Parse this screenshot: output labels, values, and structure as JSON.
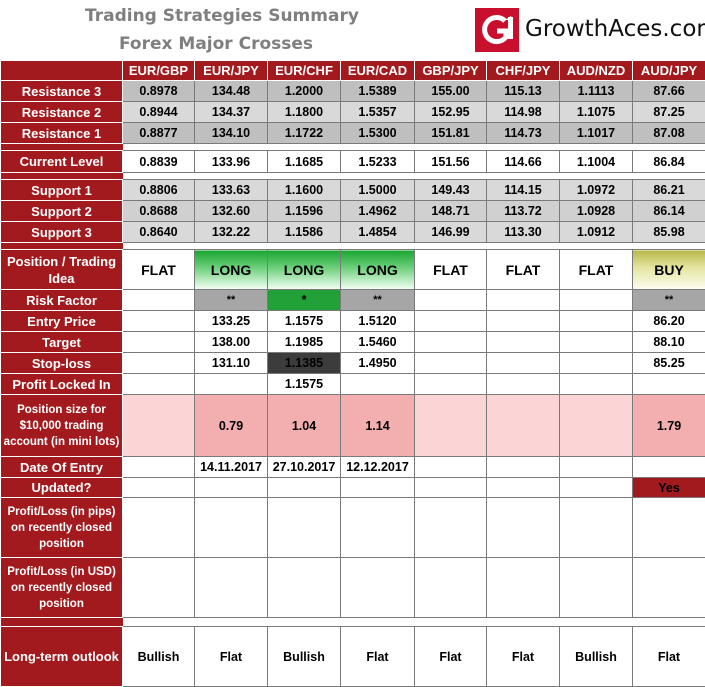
{
  "header": {
    "title": "Trading Strategies Summary",
    "subtitle": "Forex Major Crosses",
    "brand": "GrowthAces.com",
    "brand_colors": {
      "red": "#c8102e",
      "dark": "#111111"
    }
  },
  "pairs": [
    "EUR/GBP",
    "EUR/JPY",
    "EUR/CHF",
    "EUR/CAD",
    "GBP/JPY",
    "CHF/JPY",
    "AUD/NZD",
    "AUD/JPY"
  ],
  "labels": {
    "r3": "Resistance 3",
    "r2": "Resistance 2",
    "r1": "Resistance 1",
    "current": "Current Level",
    "s1": "Support 1",
    "s2": "Support 2",
    "s3": "Support 3",
    "position": "Position / Trading Idea",
    "risk": "Risk Factor",
    "entry": "Entry Price",
    "target": "Target",
    "stop": "Stop-loss",
    "locked": "Profit Locked In",
    "size": "Position size for $10,000 trading account (in mini lots)",
    "date": "Date Of Entry",
    "updated": "Updated?",
    "pl_pips": "Profit/Loss (in pips) on recently closed position",
    "pl_usd": "Profit/Loss (in USD) on recently closed position",
    "outlook": "Long-term outlook"
  },
  "rows": {
    "r3": [
      "0.8978",
      "134.48",
      "1.2000",
      "1.5389",
      "155.00",
      "115.13",
      "1.1113",
      "87.66"
    ],
    "r2": [
      "0.8944",
      "134.37",
      "1.1800",
      "1.5357",
      "152.95",
      "114.98",
      "1.1075",
      "87.25"
    ],
    "r1": [
      "0.8877",
      "134.10",
      "1.1722",
      "1.5300",
      "151.81",
      "114.73",
      "1.1017",
      "87.08"
    ],
    "current": [
      "0.8839",
      "133.96",
      "1.1685",
      "1.5233",
      "151.56",
      "114.66",
      "1.1004",
      "86.84"
    ],
    "s1": [
      "0.8806",
      "133.63",
      "1.1600",
      "1.5000",
      "149.43",
      "114.15",
      "1.0972",
      "86.21"
    ],
    "s2": [
      "0.8688",
      "132.60",
      "1.1596",
      "1.4962",
      "148.71",
      "113.72",
      "1.0928",
      "86.14"
    ],
    "s3": [
      "0.8640",
      "132.22",
      "1.1586",
      "1.4854",
      "146.99",
      "113.30",
      "1.0912",
      "85.98"
    ],
    "position": [
      "FLAT",
      "LONG",
      "LONG",
      "LONG",
      "FLAT",
      "FLAT",
      "FLAT",
      "BUY"
    ],
    "risk": [
      "",
      "**",
      "*",
      "**",
      "",
      "",
      "",
      "**"
    ],
    "entry": [
      "",
      "133.25",
      "1.1575",
      "1.5120",
      "",
      "",
      "",
      "86.20"
    ],
    "target": [
      "",
      "138.00",
      "1.1985",
      "1.5460",
      "",
      "",
      "",
      "88.10"
    ],
    "stop": [
      "",
      "131.10",
      "1.1385",
      "1.4950",
      "",
      "",
      "",
      "85.25"
    ],
    "locked": [
      "",
      "",
      "1.1575",
      "",
      "",
      "",
      "",
      ""
    ],
    "size": [
      "",
      "0.79",
      "1.04",
      "1.14",
      "",
      "",
      "",
      "1.79"
    ],
    "date": [
      "",
      "14.11.2017",
      "27.10.2017",
      "12.12.2017",
      "",
      "",
      "",
      ""
    ],
    "updated": [
      "",
      "",
      "",
      "",
      "",
      "",
      "",
      "Yes"
    ],
    "pl_pips": [
      "",
      "",
      "",
      "",
      "",
      "",
      "",
      ""
    ],
    "pl_usd": [
      "",
      "",
      "",
      "",
      "",
      "",
      "",
      ""
    ],
    "outlook": [
      "Bullish",
      "Flat",
      "Bullish",
      "Flat",
      "Flat",
      "Flat",
      "Bullish",
      "Flat"
    ]
  }
}
